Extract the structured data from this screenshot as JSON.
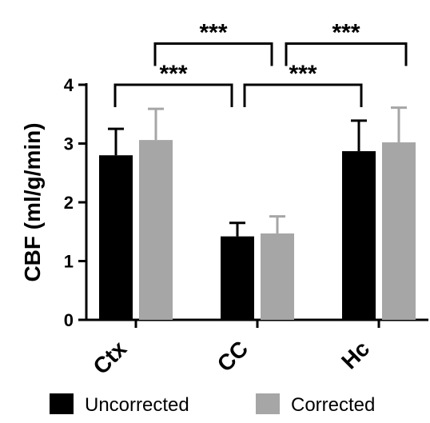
{
  "chart_data": {
    "type": "bar",
    "title": "",
    "xlabel": "",
    "ylabel": "CBF (ml/g/min)",
    "categories": [
      "Ctx",
      "CC",
      "Hc"
    ],
    "ylim": [
      0,
      4
    ],
    "yticks": [
      "0",
      "1",
      "2",
      "3",
      "4"
    ],
    "series": [
      {
        "name": "Uncorrected",
        "color": "#000000",
        "values": [
          2.8,
          1.42,
          2.87
        ],
        "errors": [
          0.45,
          0.23,
          0.52
        ]
      },
      {
        "name": "Corrected",
        "color": "#a6a6a6",
        "values": [
          3.06,
          1.47,
          3.02
        ],
        "errors": [
          0.53,
          0.29,
          0.59
        ]
      }
    ],
    "significance": [
      {
        "label": "***",
        "from": "Ctx",
        "to": "CC",
        "y": 4.0
      },
      {
        "label": "***",
        "from": "CC",
        "to": "Hc",
        "y": 4.0
      },
      {
        "label": "***",
        "from": "Ctx",
        "to": "CC",
        "y": 4.7
      },
      {
        "label": "***",
        "from": "CC",
        "to": "Hc",
        "y": 4.7
      }
    ],
    "legend_position": "bottom"
  }
}
